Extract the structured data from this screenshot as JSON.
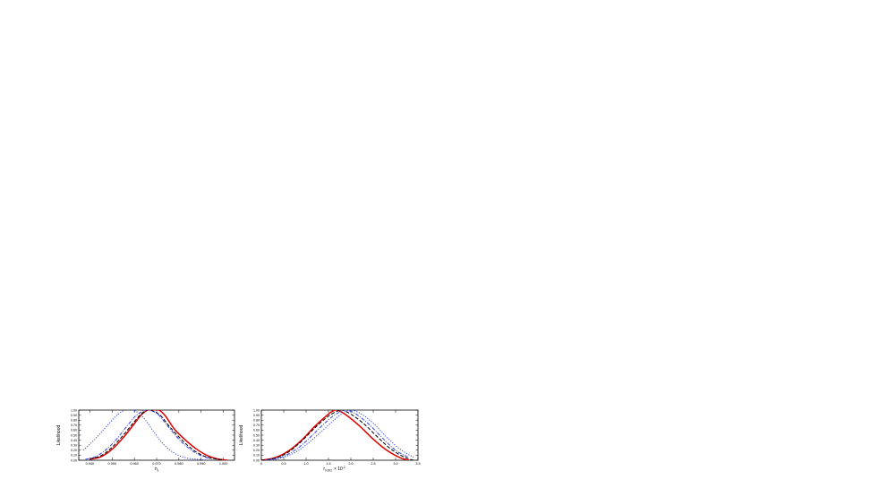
{
  "chart_data": [
    {
      "type": "line",
      "title": "",
      "xlabel": "n",
      "xlabel_sub": "s",
      "ylabel": "Likelihood",
      "xlim": [
        0.935,
        1.005
      ],
      "ylim": [
        0,
        1
      ],
      "x_ticks": [
        "0.940",
        "0.950",
        "0.960",
        "0.970",
        "0.980",
        "0.990",
        "1.000"
      ],
      "y_ticks": [
        "0.00",
        "0.10",
        "0.20",
        "0.30",
        "0.40",
        "0.50",
        "0.60",
        "0.70",
        "0.80",
        "0.90",
        "1.00"
      ],
      "grid": false,
      "series": [
        {
          "color": "#e00000",
          "style": "solid",
          "x": [
            0.94,
            0.945,
            0.95,
            0.955,
            0.96,
            0.963,
            0.966,
            0.968,
            0.971,
            0.974,
            0.978,
            0.983,
            0.988,
            0.993,
            0.998,
            1.002
          ],
          "y": [
            0.02,
            0.07,
            0.22,
            0.45,
            0.73,
            0.9,
            1.0,
            1.0,
            1.0,
            0.88,
            0.62,
            0.4,
            0.22,
            0.09,
            0.02,
            0.0
          ]
        },
        {
          "color": "#000000",
          "style": "dashed",
          "x": [
            0.94,
            0.945,
            0.95,
            0.955,
            0.96,
            0.963,
            0.966,
            0.969,
            0.972,
            0.976,
            0.981,
            0.986,
            0.991,
            0.996,
            1.0
          ],
          "y": [
            0.03,
            0.09,
            0.26,
            0.5,
            0.77,
            0.92,
            1.0,
            0.97,
            0.88,
            0.66,
            0.42,
            0.22,
            0.09,
            0.03,
            0.01
          ]
        },
        {
          "color": "#3344dd",
          "style": "dotted",
          "x": [
            0.937,
            0.94,
            0.945,
            0.95,
            0.953,
            0.956,
            0.959,
            0.962,
            0.965,
            0.969,
            0.973,
            0.978,
            0.983,
            0.988,
            0.993
          ],
          "y": [
            0.2,
            0.32,
            0.55,
            0.8,
            0.93,
            1.0,
            1.0,
            0.94,
            0.8,
            0.55,
            0.32,
            0.14,
            0.05,
            0.02,
            0.0
          ]
        },
        {
          "color": "#3344dd",
          "style": "dashdot",
          "x": [
            0.938,
            0.942,
            0.947,
            0.952,
            0.957,
            0.961,
            0.965,
            0.968,
            0.971,
            0.975,
            0.98,
            0.985,
            0.99,
            0.995
          ],
          "y": [
            0.02,
            0.06,
            0.2,
            0.42,
            0.7,
            0.9,
            1.0,
            0.98,
            0.9,
            0.68,
            0.42,
            0.22,
            0.09,
            0.02
          ]
        }
      ]
    },
    {
      "type": "line",
      "title": "",
      "xlabel": "r",
      "xlabel_sub": "0.002",
      "xlabel_suffix": "× 10",
      "xlabel_sup": "-2",
      "ylabel": "Likelihood",
      "xlim": [
        0,
        3.5
      ],
      "ylim": [
        0,
        1
      ],
      "x_ticks": [
        "0",
        "0.5",
        "1.0",
        "1.5",
        "2.0",
        "2.5",
        "3.0",
        "3.5"
      ],
      "y_ticks": [
        "0.00",
        "0.10",
        "0.20",
        "0.30",
        "0.40",
        "0.50",
        "0.60",
        "0.70",
        "0.80",
        "0.90",
        "1.00"
      ],
      "grid": false,
      "series": [
        {
          "color": "#e00000",
          "style": "solid",
          "x": [
            0.0,
            0.3,
            0.6,
            0.9,
            1.2,
            1.5,
            1.6,
            1.7,
            1.9,
            2.2,
            2.5,
            2.8,
            3.1,
            3.3
          ],
          "y": [
            0.0,
            0.05,
            0.18,
            0.4,
            0.68,
            0.92,
            0.98,
            1.0,
            0.9,
            0.68,
            0.42,
            0.2,
            0.05,
            0.0
          ]
        },
        {
          "color": "#000000",
          "style": "dashed",
          "x": [
            0.0,
            0.3,
            0.6,
            0.9,
            1.2,
            1.5,
            1.7,
            1.8,
            2.0,
            2.3,
            2.6,
            2.9,
            3.2,
            3.4
          ],
          "y": [
            0.0,
            0.04,
            0.16,
            0.38,
            0.65,
            0.88,
            0.98,
            1.0,
            0.92,
            0.72,
            0.46,
            0.22,
            0.06,
            0.0
          ]
        },
        {
          "color": "#3344dd",
          "style": "dotted",
          "x": [
            0.2,
            0.5,
            0.8,
            1.1,
            1.4,
            1.7,
            1.9,
            2.0,
            2.2,
            2.5,
            2.8,
            3.1,
            3.4
          ],
          "y": [
            0.0,
            0.06,
            0.18,
            0.38,
            0.62,
            0.86,
            0.98,
            1.0,
            0.94,
            0.74,
            0.46,
            0.22,
            0.06
          ]
        },
        {
          "color": "#3344dd",
          "style": "dashdot",
          "x": [
            0.1,
            0.4,
            0.7,
            1.0,
            1.3,
            1.6,
            1.8,
            1.9,
            2.1,
            2.4,
            2.7,
            3.0,
            3.3
          ],
          "y": [
            0.0,
            0.05,
            0.17,
            0.38,
            0.64,
            0.88,
            0.98,
            1.0,
            0.93,
            0.72,
            0.45,
            0.2,
            0.05
          ]
        }
      ]
    }
  ]
}
